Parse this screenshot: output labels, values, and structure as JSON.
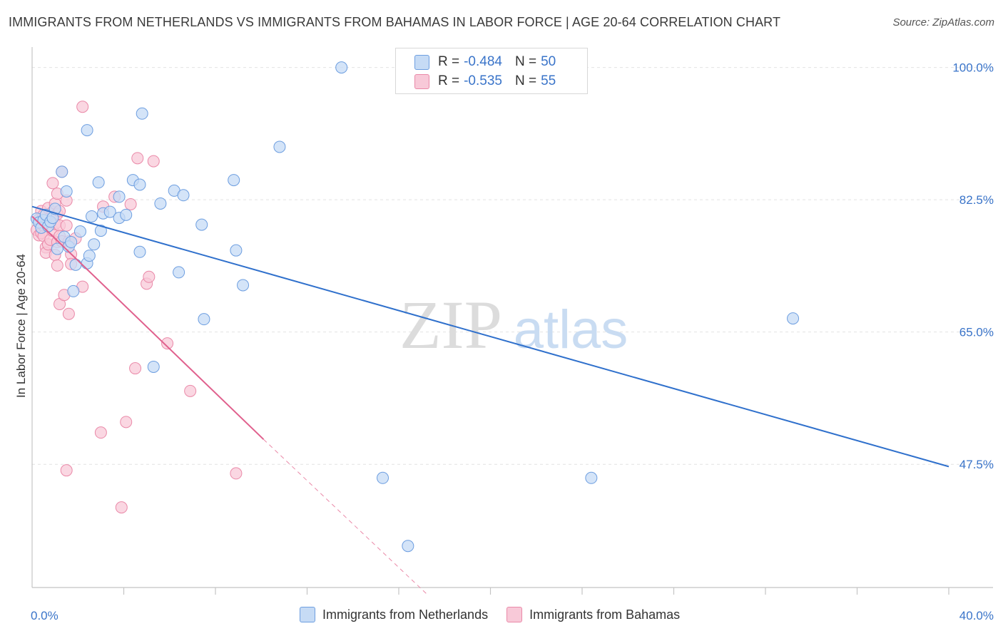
{
  "title": "IMMIGRANTS FROM NETHERLANDS VS IMMIGRANTS FROM BAHAMAS IN LABOR FORCE | AGE 20-64 CORRELATION CHART",
  "source": "Source: ZipAtlas.com",
  "colors": {
    "netherlands_fill": "#c6dbf5",
    "netherlands_stroke": "#6d9ee0",
    "netherlands_line": "#2f70cc",
    "bahamas_fill": "#f8c9d8",
    "bahamas_stroke": "#ea89a8",
    "bahamas_line": "#e0608d",
    "axis_label": "#3a74c9"
  },
  "stats": {
    "netherlands": {
      "r_label": "R =",
      "r_value": "-0.484",
      "n_label": "N =",
      "n_value": "50"
    },
    "bahamas": {
      "r_label": "R =",
      "r_value": "-0.535",
      "n_label": "N =",
      "n_value": "55"
    }
  },
  "legend": {
    "netherlands": "Immigrants from Netherlands",
    "bahamas": "Immigrants from Bahamas"
  },
  "watermark": {
    "zip": "ZIP",
    "atlas": "atlas"
  },
  "chart_data": {
    "type": "scatter",
    "title": "IMMIGRANTS FROM NETHERLANDS VS IMMIGRANTS FROM BAHAMAS IN LABOR FORCE | AGE 20-64 CORRELATION CHART",
    "xlabel": "",
    "ylabel": "In Labor Force | Age 20-64",
    "xlim": [
      0,
      40
    ],
    "ylim": [
      31.2,
      102.7
    ],
    "x_tick_labels": [
      {
        "value": 0,
        "label": "0.0%"
      },
      {
        "value": 40,
        "label": "40.0%"
      }
    ],
    "y_tick_labels": [
      {
        "value": 100.0,
        "label": "100.0%"
      },
      {
        "value": 82.5,
        "label": "82.5%"
      },
      {
        "value": 65.0,
        "label": "65.0%"
      },
      {
        "value": 47.5,
        "label": "47.5%"
      }
    ],
    "x_minor_ticks": [
      4,
      8,
      12,
      16,
      20,
      24,
      28,
      32,
      36,
      40
    ],
    "series": [
      {
        "name": "Immigrants from Netherlands",
        "key": "netherlands",
        "trend": {
          "x0": 0,
          "y0": 81.6,
          "x1": 40,
          "y1": 47.2
        },
        "points": [
          [
            0.2,
            80.0
          ],
          [
            0.3,
            79.5
          ],
          [
            0.4,
            78.8
          ],
          [
            0.5,
            79.8
          ],
          [
            0.6,
            80.5
          ],
          [
            0.7,
            79.0
          ],
          [
            0.8,
            79.6
          ],
          [
            0.9,
            80.1
          ],
          [
            1.0,
            81.3
          ],
          [
            1.1,
            76.0
          ],
          [
            1.3,
            86.2
          ],
          [
            1.4,
            77.6
          ],
          [
            1.5,
            83.6
          ],
          [
            1.6,
            76.3
          ],
          [
            1.7,
            76.9
          ],
          [
            1.8,
            70.4
          ],
          [
            1.9,
            73.9
          ],
          [
            2.1,
            78.3
          ],
          [
            2.4,
            74.1
          ],
          [
            2.5,
            75.1
          ],
          [
            2.4,
            91.7
          ],
          [
            2.6,
            80.3
          ],
          [
            2.7,
            76.6
          ],
          [
            2.9,
            84.8
          ],
          [
            3.0,
            78.4
          ],
          [
            3.1,
            80.7
          ],
          [
            3.4,
            80.9
          ],
          [
            3.8,
            82.9
          ],
          [
            3.8,
            80.1
          ],
          [
            4.1,
            80.5
          ],
          [
            4.4,
            85.1
          ],
          [
            4.7,
            84.5
          ],
          [
            4.7,
            75.6
          ],
          [
            4.8,
            93.9
          ],
          [
            5.3,
            60.4
          ],
          [
            5.6,
            82.0
          ],
          [
            6.2,
            83.7
          ],
          [
            6.4,
            72.9
          ],
          [
            6.6,
            83.1
          ],
          [
            7.4,
            79.2
          ],
          [
            7.5,
            66.7
          ],
          [
            8.8,
            85.1
          ],
          [
            8.9,
            75.8
          ],
          [
            9.2,
            71.2
          ],
          [
            10.8,
            89.5
          ],
          [
            13.5,
            100.0
          ],
          [
            15.3,
            45.7
          ],
          [
            16.4,
            36.7
          ],
          [
            24.4,
            45.7
          ],
          [
            33.2,
            66.8
          ]
        ]
      },
      {
        "name": "Immigrants from Bahamas",
        "key": "bahamas",
        "trend": {
          "x0": 0,
          "y0": 80.3,
          "x1": 10.1,
          "y1": 50.8,
          "dash_x1": 17.2,
          "dash_y1": 30.4
        },
        "points": [
          [
            0.2,
            78.5
          ],
          [
            0.3,
            79.9
          ],
          [
            0.3,
            77.8
          ],
          [
            0.4,
            81.0
          ],
          [
            0.4,
            78.1
          ],
          [
            0.5,
            80.5
          ],
          [
            0.5,
            77.7
          ],
          [
            0.5,
            79.1
          ],
          [
            0.6,
            76.2
          ],
          [
            0.6,
            75.5
          ],
          [
            0.7,
            81.4
          ],
          [
            0.7,
            76.6
          ],
          [
            0.8,
            79.6
          ],
          [
            0.8,
            77.2
          ],
          [
            0.9,
            80.9
          ],
          [
            0.9,
            78.4
          ],
          [
            0.9,
            84.7
          ],
          [
            1.0,
            82.0
          ],
          [
            1.0,
            79.3
          ],
          [
            1.0,
            75.2
          ],
          [
            1.1,
            80.6
          ],
          [
            1.1,
            76.9
          ],
          [
            1.1,
            73.8
          ],
          [
            1.1,
            83.3
          ],
          [
            1.2,
            79.1
          ],
          [
            1.2,
            77.7
          ],
          [
            1.2,
            81.0
          ],
          [
            1.2,
            68.7
          ],
          [
            1.3,
            86.2
          ],
          [
            1.3,
            77.0
          ],
          [
            1.4,
            69.9
          ],
          [
            1.5,
            82.4
          ],
          [
            1.5,
            79.1
          ],
          [
            1.5,
            46.7
          ],
          [
            1.6,
            67.4
          ],
          [
            1.6,
            77.0
          ],
          [
            1.7,
            75.3
          ],
          [
            1.7,
            74.0
          ],
          [
            1.9,
            77.4
          ],
          [
            2.2,
            71.0
          ],
          [
            2.2,
            94.8
          ],
          [
            3.0,
            51.7
          ],
          [
            3.1,
            81.6
          ],
          [
            3.6,
            82.9
          ],
          [
            3.9,
            41.8
          ],
          [
            4.1,
            53.1
          ],
          [
            4.3,
            81.9
          ],
          [
            4.5,
            60.2
          ],
          [
            5.0,
            71.4
          ],
          [
            5.1,
            72.3
          ],
          [
            5.3,
            87.6
          ],
          [
            5.9,
            63.5
          ],
          [
            6.9,
            57.2
          ],
          [
            8.9,
            46.3
          ],
          [
            4.6,
            88.0
          ]
        ]
      }
    ]
  }
}
